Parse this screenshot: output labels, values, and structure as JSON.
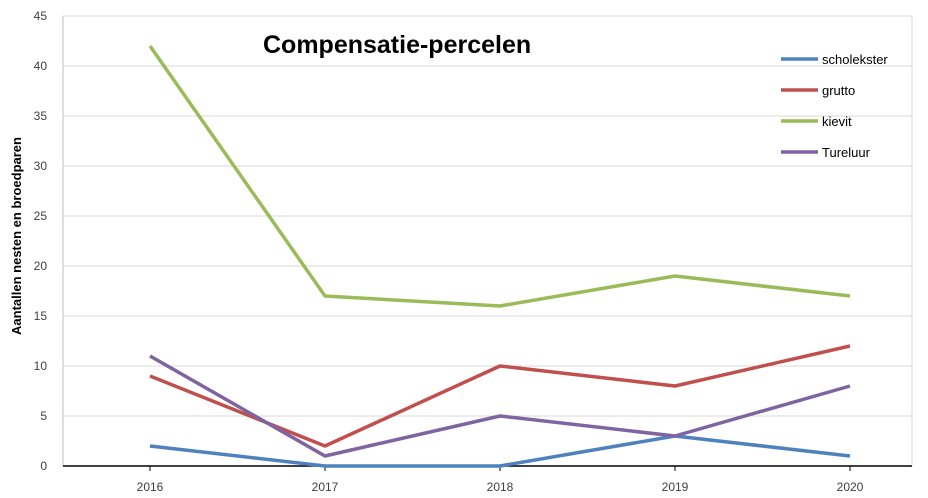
{
  "chart_data": {
    "type": "line",
    "title": "Compensatie-percelen",
    "xlabel": "",
    "ylabel": "Aantallen nesten en broedparen",
    "categories": [
      "2016",
      "2017",
      "2018",
      "2019",
      "2020"
    ],
    "ylim": [
      0,
      45
    ],
    "yticks": [
      0,
      5,
      10,
      15,
      20,
      25,
      30,
      35,
      40,
      45
    ],
    "grid": true,
    "legend": "top-right",
    "series": [
      {
        "name": "scholekster",
        "color": "#4f81bd",
        "values": [
          2,
          0,
          0,
          3,
          1
        ]
      },
      {
        "name": "grutto",
        "color": "#c0504d",
        "values": [
          9,
          2,
          10,
          8,
          12
        ]
      },
      {
        "name": "kievit",
        "color": "#9bbb59",
        "values": [
          42,
          17,
          16,
          19,
          17
        ]
      },
      {
        "name": "Tureluur",
        "color": "#8064a2",
        "values": [
          11,
          1,
          5,
          3,
          8
        ]
      }
    ]
  }
}
